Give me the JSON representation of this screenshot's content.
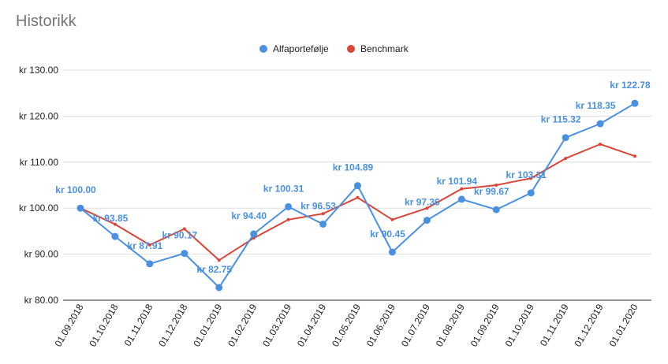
{
  "chart_data": {
    "type": "line",
    "title": "Historikk",
    "xlabel": "",
    "ylabel": "",
    "currency_prefix": "kr",
    "ylim": [
      80,
      130
    ],
    "yticks": [
      80,
      90,
      100,
      110,
      120,
      130
    ],
    "ytick_labels": [
      "kr  80.00",
      "kr  90.00",
      "kr  100.00",
      "kr  110.00",
      "kr  120.00",
      "kr  130.00"
    ],
    "grid": true,
    "legend_position": "top",
    "categories": [
      "01.09.2018",
      "01.10.2018",
      "01.11.2018",
      "01.12.2018",
      "01.01.2019",
      "01.02.2019",
      "01.03.2019",
      "01.04.2019",
      "01.05.2019",
      "01.06.2019",
      "01.07.2019",
      "01.08.2019",
      "01.09.2019",
      "01.10.2019",
      "01.11.2019",
      "01.12.2019",
      "01.01.2020"
    ],
    "series": [
      {
        "name": "Alfaportefølje",
        "color": "#4a90e2",
        "values": [
          100.0,
          93.85,
          87.91,
          90.17,
          82.75,
          94.4,
          100.31,
          96.53,
          104.89,
          90.45,
          97.36,
          101.94,
          99.67,
          103.31,
          115.32,
          118.35,
          122.78
        ],
        "data_labels": [
          "kr  100.00",
          "kr  93.85",
          "kr  87.91",
          "kr  90.17",
          "kr  82.75",
          "kr  94.40",
          "kr  100.31",
          "kr  96.53",
          "kr  104.89",
          "kr  90.45",
          "kr  97.36",
          "kr  101.94",
          "kr  99.67",
          "kr  103.31",
          "kr  115.32",
          "kr  118.35",
          "kr  122.78"
        ]
      },
      {
        "name": "Benchmark",
        "color": "#db4437",
        "values": [
          100.0,
          96.5,
          92.0,
          95.5,
          88.7,
          93.5,
          97.5,
          98.8,
          102.3,
          97.5,
          100.0,
          104.2,
          105.0,
          106.5,
          110.8,
          113.9,
          111.3
        ]
      }
    ]
  }
}
